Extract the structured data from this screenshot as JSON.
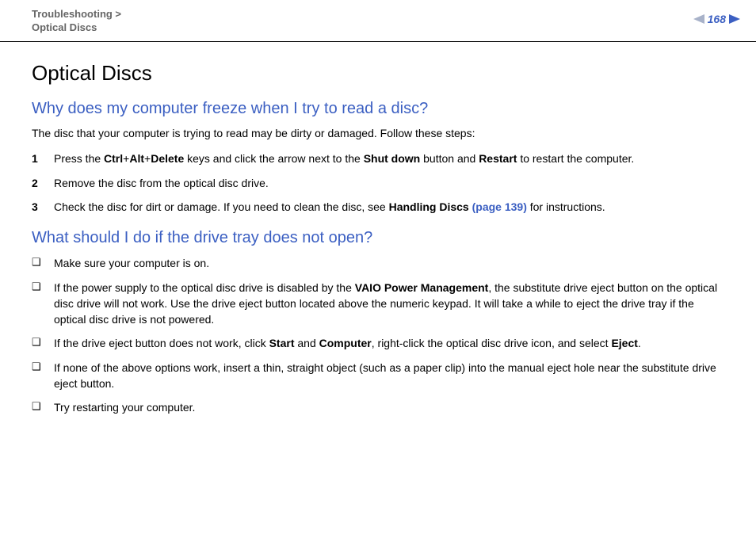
{
  "header": {
    "breadcrumb_line1": "Troubleshooting >",
    "breadcrumb_line2": "Optical Discs",
    "page_number": "168",
    "nav_prev_color": "#a8b2c9",
    "nav_next_color": "#3b5fc2"
  },
  "page_title": "Optical Discs",
  "section1": {
    "question": "Why does my computer freeze when I try to read a disc?",
    "intro": "The disc that your computer is trying to read may be dirty or damaged. Follow these steps:",
    "steps": [
      {
        "num": "1",
        "parts": [
          {
            "t": "Press the ",
            "b": false
          },
          {
            "t": "Ctrl",
            "b": true
          },
          {
            "t": "+",
            "b": false
          },
          {
            "t": "Alt",
            "b": true
          },
          {
            "t": "+",
            "b": false
          },
          {
            "t": "Delete",
            "b": true
          },
          {
            "t": " keys and click the arrow next to the ",
            "b": false
          },
          {
            "t": "Shut down",
            "b": true
          },
          {
            "t": " button and ",
            "b": false
          },
          {
            "t": "Restart",
            "b": true
          },
          {
            "t": " to restart the computer.",
            "b": false
          }
        ]
      },
      {
        "num": "2",
        "parts": [
          {
            "t": "Remove the disc from the optical disc drive.",
            "b": false
          }
        ]
      },
      {
        "num": "3",
        "parts": [
          {
            "t": "Check the disc for dirt or damage. If you need to clean the disc, see ",
            "b": false
          },
          {
            "t": "Handling Discs ",
            "b": true
          },
          {
            "t": "(page 139)",
            "b": true,
            "link": true
          },
          {
            "t": " for instructions.",
            "b": false
          }
        ]
      }
    ]
  },
  "section2": {
    "question": "What should I do if the drive tray does not open?",
    "bullets": [
      {
        "parts": [
          {
            "t": "Make sure your computer is on.",
            "b": false
          }
        ]
      },
      {
        "parts": [
          {
            "t": "If the power supply to the optical disc drive is disabled by the ",
            "b": false
          },
          {
            "t": "VAIO Power Management",
            "b": true
          },
          {
            "t": ", the substitute drive eject button on the optical disc drive will not work. Use the drive eject button located above the numeric keypad. It will take a while to eject the drive tray if the optical disc drive is not powered.",
            "b": false
          }
        ]
      },
      {
        "parts": [
          {
            "t": "If the drive eject button does not work, click ",
            "b": false
          },
          {
            "t": "Start",
            "b": true
          },
          {
            "t": " and ",
            "b": false
          },
          {
            "t": "Computer",
            "b": true
          },
          {
            "t": ", right-click the optical disc drive icon, and select ",
            "b": false
          },
          {
            "t": "Eject",
            "b": true
          },
          {
            "t": ".",
            "b": false
          }
        ]
      },
      {
        "parts": [
          {
            "t": "If none of the above options work, insert a thin, straight object (such as a paper clip) into the manual eject hole near the substitute drive eject button.",
            "b": false
          }
        ]
      },
      {
        "parts": [
          {
            "t": "Try restarting your computer.",
            "b": false
          }
        ]
      }
    ]
  },
  "bullet_glyph": "❑",
  "colors": {
    "heading_blue": "#3b5fc2",
    "breadcrumb_gray": "#666666",
    "text_black": "#000000"
  }
}
